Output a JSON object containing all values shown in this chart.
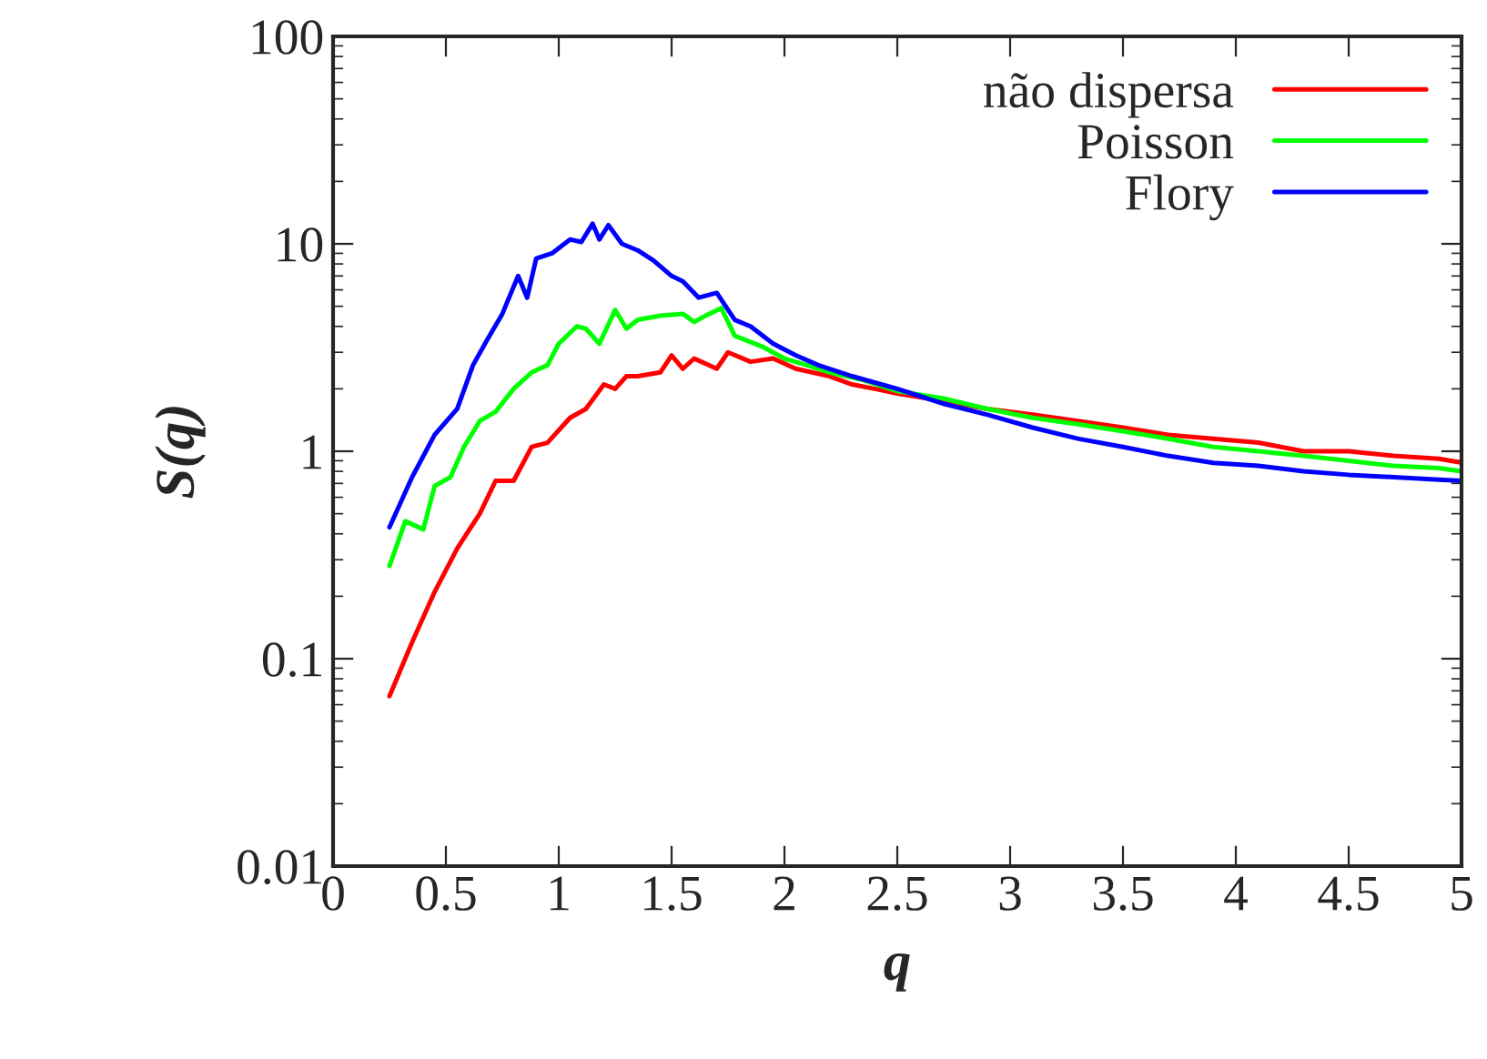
{
  "chart_data": {
    "type": "line",
    "xlabel": "q",
    "ylabel": "S(q)",
    "log": "y",
    "xlim": [
      0,
      5
    ],
    "ylim": [
      0.01,
      100
    ],
    "xticks": [
      0,
      0.5,
      1,
      1.5,
      2,
      2.5,
      3,
      3.5,
      4,
      4.5,
      5
    ],
    "yticks": [
      0.01,
      0.1,
      1,
      10,
      100
    ],
    "legend": "top right",
    "grid": false,
    "series": [
      {
        "name": "não dispersa",
        "color": "#ff0000",
        "x": [
          0.25,
          0.35,
          0.45,
          0.55,
          0.65,
          0.72,
          0.8,
          0.88,
          0.95,
          1.05,
          1.12,
          1.2,
          1.25,
          1.3,
          1.35,
          1.45,
          1.5,
          1.55,
          1.6,
          1.7,
          1.75,
          1.85,
          1.95,
          2.05,
          2.2,
          2.3,
          2.4,
          2.5,
          2.7,
          2.9,
          3.1,
          3.3,
          3.5,
          3.7,
          3.9,
          4.1,
          4.3,
          4.5,
          4.7,
          4.9,
          5.0
        ],
        "values": [
          0.066,
          0.12,
          0.21,
          0.34,
          0.5,
          0.72,
          0.72,
          1.05,
          1.1,
          1.45,
          1.6,
          2.1,
          2.0,
          2.3,
          2.3,
          2.4,
          2.9,
          2.5,
          2.8,
          2.5,
          3.0,
          2.7,
          2.8,
          2.5,
          2.3,
          2.1,
          2.0,
          1.9,
          1.75,
          1.6,
          1.5,
          1.4,
          1.3,
          1.2,
          1.15,
          1.1,
          1.0,
          1.0,
          0.95,
          0.92,
          0.88
        ]
      },
      {
        "name": "Poisson",
        "color": "#00ff00",
        "x": [
          0.25,
          0.32,
          0.4,
          0.45,
          0.52,
          0.58,
          0.65,
          0.72,
          0.8,
          0.88,
          0.95,
          1.0,
          1.08,
          1.12,
          1.18,
          1.25,
          1.3,
          1.35,
          1.45,
          1.55,
          1.6,
          1.65,
          1.72,
          1.78,
          1.9,
          2.0,
          2.1,
          2.2,
          2.35,
          2.5,
          2.7,
          2.9,
          3.1,
          3.3,
          3.5,
          3.7,
          3.9,
          4.1,
          4.3,
          4.5,
          4.7,
          4.9,
          5.0
        ],
        "values": [
          0.28,
          0.46,
          0.42,
          0.68,
          0.75,
          1.05,
          1.4,
          1.55,
          2.0,
          2.4,
          2.6,
          3.3,
          4.0,
          3.9,
          3.3,
          4.8,
          3.9,
          4.3,
          4.5,
          4.6,
          4.2,
          4.5,
          4.9,
          3.6,
          3.2,
          2.8,
          2.6,
          2.4,
          2.2,
          1.95,
          1.8,
          1.6,
          1.45,
          1.35,
          1.25,
          1.15,
          1.05,
          1.0,
          0.95,
          0.9,
          0.85,
          0.83,
          0.8
        ]
      },
      {
        "name": "Flory",
        "color": "#0000ff",
        "x": [
          0.25,
          0.35,
          0.45,
          0.55,
          0.62,
          0.68,
          0.75,
          0.82,
          0.86,
          0.9,
          0.97,
          1.05,
          1.1,
          1.15,
          1.18,
          1.22,
          1.28,
          1.35,
          1.42,
          1.5,
          1.55,
          1.62,
          1.7,
          1.78,
          1.85,
          1.95,
          2.05,
          2.15,
          2.3,
          2.5,
          2.7,
          2.9,
          3.1,
          3.3,
          3.5,
          3.7,
          3.9,
          4.1,
          4.3,
          4.5,
          4.7,
          4.9,
          5.0
        ],
        "values": [
          0.43,
          0.75,
          1.2,
          1.6,
          2.6,
          3.4,
          4.6,
          7.0,
          5.5,
          8.5,
          9.0,
          10.5,
          10.2,
          12.5,
          10.5,
          12.3,
          10.0,
          9.3,
          8.3,
          7.0,
          6.6,
          5.5,
          5.8,
          4.3,
          4.0,
          3.3,
          2.9,
          2.6,
          2.3,
          2.0,
          1.7,
          1.5,
          1.3,
          1.15,
          1.05,
          0.95,
          0.88,
          0.85,
          0.8,
          0.77,
          0.75,
          0.73,
          0.72
        ]
      }
    ]
  }
}
